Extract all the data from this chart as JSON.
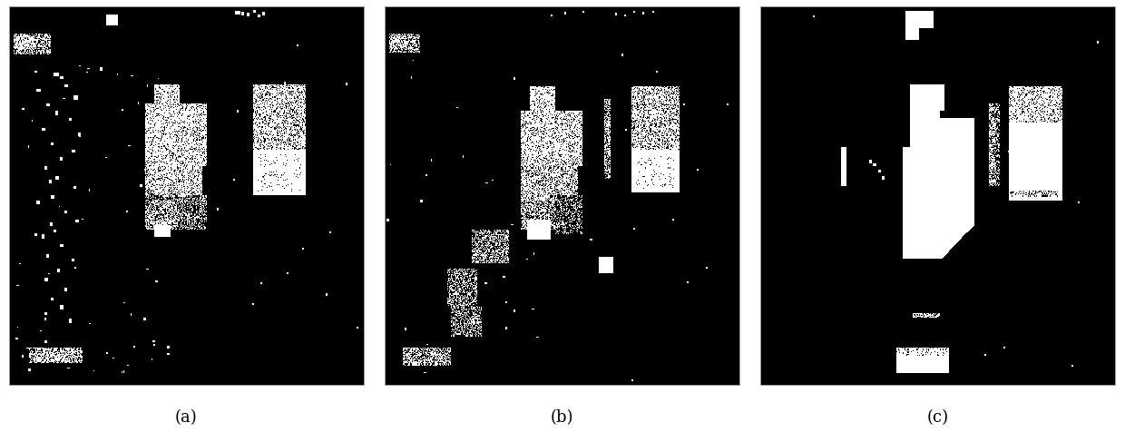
{
  "labels": [
    "(a)",
    "(b)",
    "(c)"
  ],
  "label_fontsize": 13,
  "bg_color": "#ffffff",
  "fig_width": 12.4,
  "fig_height": 4.87,
  "dpi": 100,
  "panel_border_color": "#999999",
  "panel_border_lw": 0.7
}
